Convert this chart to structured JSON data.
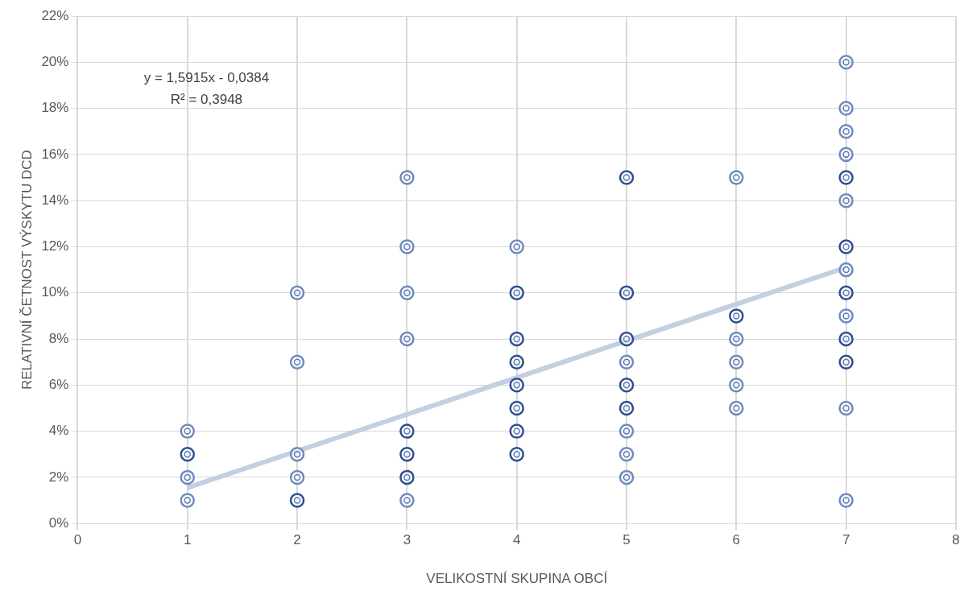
{
  "chart_data": {
    "type": "scatter",
    "xlabel": "VELIKOSTNÍ SKUPINA OBCÍ",
    "ylabel": "RELATIVNÍ ČETNOST VÝSKYTU DCD",
    "annotations": [
      "y = 1,5915x - 0,0384",
      "R² = 0,3948"
    ],
    "xlim": [
      0,
      8
    ],
    "xticks": [
      0,
      1,
      2,
      3,
      4,
      5,
      6,
      7,
      8
    ],
    "ylim": [
      0,
      22
    ],
    "yticks": [
      {
        "value": 0,
        "label": "0%"
      },
      {
        "value": 2,
        "label": "2%"
      },
      {
        "value": 4,
        "label": "4%"
      },
      {
        "value": 6,
        "label": "6%"
      },
      {
        "value": 8,
        "label": "8%"
      },
      {
        "value": 10,
        "label": "10%"
      },
      {
        "value": 12,
        "label": "12%"
      },
      {
        "value": 14,
        "label": "14%"
      },
      {
        "value": 16,
        "label": "16%"
      },
      {
        "value": 18,
        "label": "18%"
      },
      {
        "value": 20,
        "label": "20%"
      },
      {
        "value": 22,
        "label": "22%"
      }
    ],
    "grid": true,
    "series": [
      {
        "type": "scatter",
        "color": "#5b79b3",
        "marker": "circle",
        "x": [
          1,
          1,
          1,
          1,
          2,
          2,
          2,
          2,
          2,
          3,
          3,
          3,
          3,
          3,
          3,
          3,
          3,
          4,
          4,
          4,
          4,
          4,
          4,
          4,
          4,
          5,
          5,
          5,
          5,
          5,
          5,
          5,
          5,
          5,
          6,
          6,
          6,
          6,
          6,
          6,
          7,
          7,
          7,
          7,
          7,
          7,
          7,
          7,
          7,
          7,
          7,
          7,
          7,
          7
        ],
        "values": [
          4,
          3,
          2,
          1,
          10,
          7,
          3,
          2,
          1,
          15,
          12,
          10,
          8,
          4,
          3,
          2,
          1,
          12,
          10,
          8,
          7,
          6,
          5,
          4,
          3,
          15,
          10,
          8,
          7,
          6,
          5,
          4,
          3,
          2,
          15,
          9,
          8,
          7,
          6,
          5,
          20,
          18,
          17,
          16,
          15,
          14,
          12,
          11,
          10,
          9,
          8,
          7,
          5,
          1
        ],
        "colors": [
          "#6f8bbd",
          "#2f4f8f",
          "#6f8bbd",
          "#6f8bbd",
          "#6f8bbd",
          "#6f8bbd",
          "#6f8bbd",
          "#6f8bbd",
          "#2f4f8f",
          "#6f8bbd",
          "#6f8bbd",
          "#6f8bbd",
          "#6f8bbd",
          "#2f4f8f",
          "#2f4f8f",
          "#2f4f8f",
          "#6f8bbd",
          "#6f8bbd",
          "#2f4f8f",
          "#2f4f8f",
          "#2f4f8f",
          "#2f4f8f",
          "#2f4f8f",
          "#2f4f8f",
          "#2f4f8f",
          "#2f4f8f",
          "#2f4f8f",
          "#2f4f8f",
          "#6f8bbd",
          "#2f4f8f",
          "#2f4f8f",
          "#6f8bbd",
          "#6f8bbd",
          "#6f8bbd",
          "#6f8bbd",
          "#2f4f8f",
          "#6f8bbd",
          "#6f8bbd",
          "#6f8bbd",
          "#6f8bbd",
          "#6f8bbd",
          "#6f8bbd",
          "#6f8bbd",
          "#6f8bbd",
          "#2f4f8f",
          "#6f8bbd",
          "#2f4f8f",
          "#6f8bbd",
          "#2f4f8f",
          "#6f8bbd",
          "#2f4f8f",
          "#2f4f8f",
          "#6f8bbd",
          "#6f8bbd"
        ]
      },
      {
        "type": "line",
        "color": "#c3cfe2",
        "marker": "none",
        "x": [
          1,
          7
        ],
        "values": [
          1.55,
          11.1
        ]
      }
    ]
  }
}
